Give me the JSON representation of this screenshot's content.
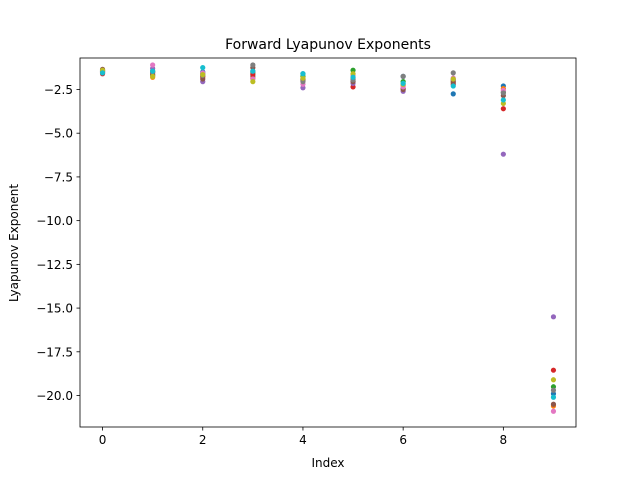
{
  "chart_data": {
    "type": "scatter",
    "title": "Forward Lyapunov Exponents",
    "xlabel": "Index",
    "ylabel": "Lyapunov Exponent",
    "xlim": [
      -0.45,
      9.45
    ],
    "ylim": [
      -21.8,
      -0.7
    ],
    "x_ticks": [
      0,
      2,
      4,
      6,
      8
    ],
    "y_ticks": [
      -2.5,
      -5.0,
      -7.5,
      -10.0,
      -12.5,
      -15.0,
      -17.5,
      -20.0
    ],
    "x_tick_labels": [
      "0",
      "2",
      "4",
      "6",
      "8"
    ],
    "y_tick_labels": [
      "−2.5",
      "−5.0",
      "−7.5",
      "−10.0",
      "−12.5",
      "−15.0",
      "−17.5",
      "−20.0"
    ],
    "grid": false,
    "legend": false,
    "series": [
      {
        "color": "#1f77b4",
        "values": [
          -1.45,
          -1.7,
          -1.5,
          -1.75,
          -1.6,
          -1.95,
          -1.75,
          -2.75,
          -2.3,
          -19.9
        ]
      },
      {
        "color": "#ff7f0e",
        "values": [
          -1.55,
          -1.8,
          -1.8,
          -1.85,
          -2.0,
          -1.85,
          -2.25,
          -2.05,
          -2.45,
          -20.6
        ]
      },
      {
        "color": "#2ca02c",
        "values": [
          -1.4,
          -1.45,
          -1.6,
          -1.55,
          -1.75,
          -1.4,
          -2.05,
          -1.95,
          -2.65,
          -19.5
        ]
      },
      {
        "color": "#d62728",
        "values": [
          -1.6,
          -1.55,
          -1.75,
          -1.65,
          -1.9,
          -2.35,
          -2.45,
          -2.2,
          -3.6,
          -18.55
        ]
      },
      {
        "color": "#9467bd",
        "values": [
          -1.5,
          -1.3,
          -2.05,
          -1.45,
          -2.4,
          -2.15,
          -2.6,
          -2.0,
          -6.2,
          -15.5
        ]
      },
      {
        "color": "#8c564b",
        "values": [
          -1.35,
          -1.65,
          -1.9,
          -1.25,
          -1.95,
          -2.05,
          -2.5,
          -2.1,
          -2.85,
          -20.5
        ]
      },
      {
        "color": "#e377c2",
        "values": [
          -1.45,
          -1.1,
          -1.55,
          -1.9,
          -2.2,
          -1.7,
          -2.35,
          -1.85,
          -2.55,
          -20.9
        ]
      },
      {
        "color": "#7f7f7f",
        "values": [
          -1.5,
          -1.5,
          -1.7,
          -1.1,
          -2.05,
          -1.95,
          -1.75,
          -1.55,
          -2.7,
          -19.7
        ]
      },
      {
        "color": "#bcbd22",
        "values": [
          -1.4,
          -1.75,
          -1.65,
          -2.05,
          -1.85,
          -1.6,
          -2.2,
          -1.9,
          -3.3,
          -19.1
        ]
      },
      {
        "color": "#17becf",
        "values": [
          -1.55,
          -1.45,
          -1.25,
          -1.45,
          -1.6,
          -1.8,
          -2.15,
          -2.3,
          -3.1,
          -20.1
        ]
      }
    ]
  }
}
